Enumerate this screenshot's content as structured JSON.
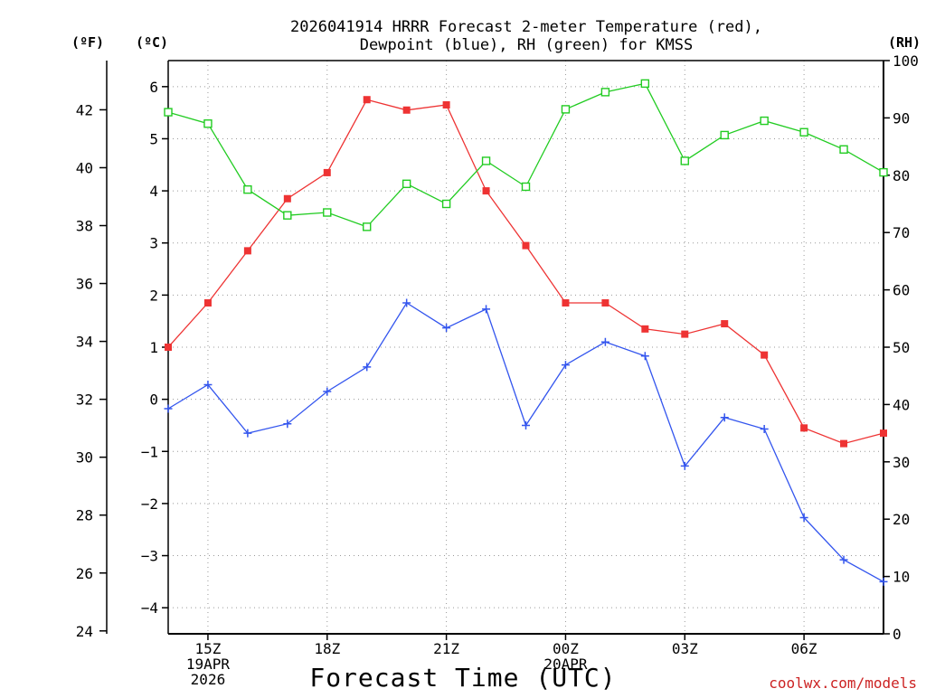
{
  "chart_data": {
    "type": "line",
    "title_line1": "2026041914 HRRR Forecast 2-meter Temperature (red),",
    "title_line2": "Dewpoint (blue), RH (green) for KMSS",
    "xlabel": "Forecast Time (UTC)",
    "credit": "coolwx.com/models",
    "left_outer_label": "(ºF)",
    "left_inner_label": "(ºC)",
    "right_label": "(RH)",
    "x_hours": [
      14,
      15,
      16,
      17,
      18,
      19,
      20,
      21,
      22,
      23,
      24,
      25,
      26,
      27,
      28,
      29,
      30,
      31,
      32
    ],
    "x_ticks": [
      {
        "hour": 15,
        "lines": [
          "15Z",
          "19APR",
          "2026"
        ]
      },
      {
        "hour": 18,
        "lines": [
          "18Z"
        ]
      },
      {
        "hour": 21,
        "lines": [
          "21Z"
        ]
      },
      {
        "hour": 24,
        "lines": [
          "00Z",
          "20APR"
        ]
      },
      {
        "hour": 27,
        "lines": [
          "03Z"
        ]
      },
      {
        "hour": 30,
        "lines": [
          "06Z"
        ]
      }
    ],
    "celsius_axis": {
      "min": -4.5,
      "max": 6.5,
      "ticks": [
        -4,
        -3,
        -2,
        -1,
        0,
        1,
        2,
        3,
        4,
        5,
        6
      ]
    },
    "fahrenheit_ticks": [
      24,
      26,
      28,
      30,
      32,
      34,
      36,
      38,
      40,
      42
    ],
    "rh_axis": {
      "min": 0,
      "max": 100,
      "ticks": [
        0,
        10,
        20,
        30,
        40,
        50,
        60,
        70,
        80,
        90,
        100
      ]
    },
    "series": [
      {
        "name": "Temperature",
        "unit": "C",
        "color": "#ee3333",
        "marker": "filled-square",
        "values": [
          1.0,
          1.85,
          2.85,
          3.85,
          4.35,
          5.75,
          5.55,
          5.65,
          4.0,
          2.95,
          1.85,
          1.85,
          1.35,
          1.25,
          1.45,
          0.85,
          -0.55,
          -0.85,
          -0.65
        ]
      },
      {
        "name": "Dewpoint",
        "unit": "C",
        "color": "#3355ee",
        "marker": "plus",
        "values": [
          -0.18,
          0.28,
          -0.65,
          -0.47,
          0.15,
          0.62,
          1.85,
          1.37,
          1.73,
          -0.5,
          0.66,
          1.1,
          0.83,
          -1.28,
          -0.35,
          -0.57,
          -2.27,
          -3.08,
          -3.5
        ]
      },
      {
        "name": "RH",
        "unit": "%",
        "color": "#22cc22",
        "marker": "open-square",
        "values": [
          91,
          89,
          77.5,
          73,
          73.5,
          71,
          78.5,
          75,
          82.5,
          78,
          91.5,
          94.5,
          96,
          82.5,
          87,
          89.5,
          87.5,
          84.5,
          80.5
        ]
      }
    ]
  }
}
